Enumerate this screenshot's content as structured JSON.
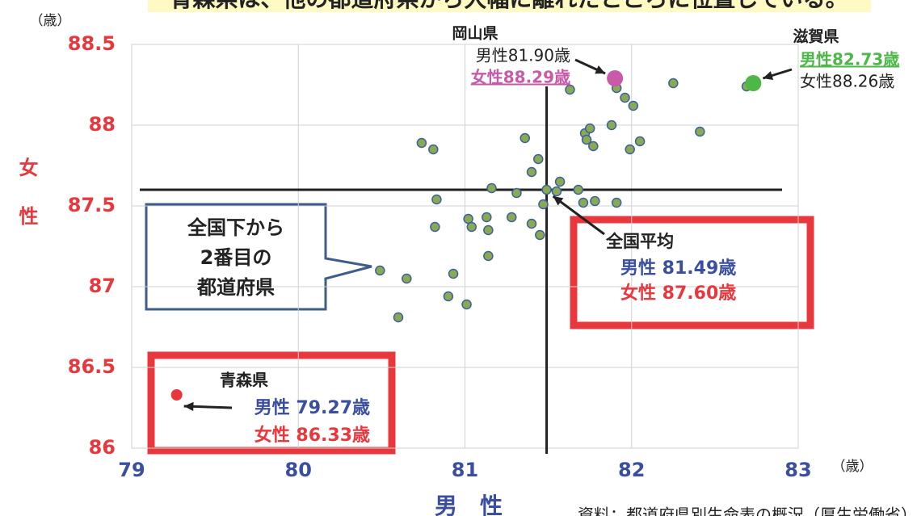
{
  "chart_data": {
    "type": "scatter",
    "title": "青森県は、他の都道府県から大幅に離れたところに位置している。",
    "xlabel": "男　性",
    "ylabel": "女性",
    "xunit": "（歳）",
    "yunit": "（歳）",
    "source": "資料：都道府県別生命表の概況（厚生労働省）",
    "xlim": [
      79,
      83
    ],
    "xticks": [
      79,
      80,
      81,
      82,
      83
    ],
    "ylim": [
      86,
      88.5
    ],
    "yticks": [
      86,
      86.5,
      87,
      87.5,
      88,
      88.5
    ],
    "grid": true,
    "series": [
      {
        "color": "#8aaa50",
        "edgecolor": "#3a5fa8",
        "x": [
          80.49,
          80.65,
          80.6,
          80.9,
          80.93,
          81.01,
          80.82,
          80.83,
          81.02,
          81.04,
          81.13,
          81.14,
          81.14,
          81.16,
          81.28,
          81.31,
          81.4,
          81.45,
          81.47,
          81.4,
          81.44,
          81.36,
          80.74,
          80.81,
          81.57,
          81.55,
          81.68,
          81.71,
          81.78,
          81.91,
          81.72,
          81.75,
          81.73,
          81.77,
          81.88,
          81.99,
          82.05,
          81.96,
          82.01,
          81.91,
          81.63,
          82.25,
          82.41,
          82.69
        ],
        "y": [
          87.1,
          87.05,
          86.81,
          86.94,
          87.08,
          86.89,
          87.37,
          87.54,
          87.42,
          87.37,
          87.43,
          87.35,
          87.19,
          87.61,
          87.43,
          87.58,
          87.39,
          87.32,
          87.51,
          87.71,
          87.79,
          87.92,
          87.89,
          87.85,
          87.65,
          87.59,
          87.6,
          87.52,
          87.53,
          87.52,
          87.95,
          87.98,
          87.91,
          87.87,
          88.0,
          87.85,
          87.9,
          88.17,
          88.12,
          88.23,
          88.22,
          88.26,
          87.96,
          88.24
        ]
      }
    ],
    "average": {
      "label": "全国平均",
      "male_label": "男性 81.49歳",
      "female_label": "女性 87.60歳",
      "x": 81.49,
      "y": 87.6
    },
    "highlights": [
      {
        "label": "青森県",
        "male_label": "男性 79.27歳",
        "female_label": "女性 86.33歳",
        "x": 79.27,
        "y": 86.33,
        "color": "#e8383d"
      },
      {
        "label": "岡山県",
        "male_label": "男性81.90歳",
        "female_label": "女性88.29歳",
        "x": 81.9,
        "y": 88.29,
        "color": "#c85aa8"
      },
      {
        "label": "滋賀県",
        "male_label": "男性82.73歳",
        "female_label": "女性88.26歳",
        "x": 82.73,
        "y": 88.26,
        "color": "#4cb848"
      }
    ],
    "callout": [
      "全国下から",
      "2番目の",
      "都道府県"
    ]
  }
}
